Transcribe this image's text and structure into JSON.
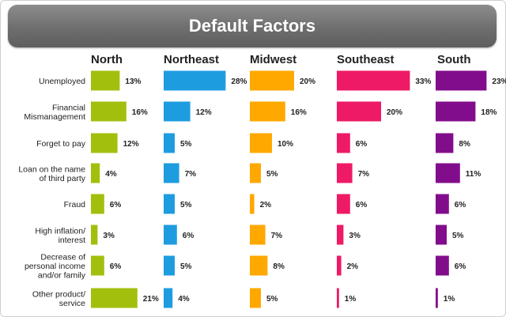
{
  "title": "Default Factors",
  "chart_data": {
    "type": "bar",
    "orientation": "horizontal",
    "title": "Default Factors",
    "value_suffix": "%",
    "categories": [
      [
        "Unemployed"
      ],
      [
        "Financial",
        "Mismanagement"
      ],
      [
        "Forget to pay"
      ],
      [
        "Loan on the name",
        "of third party"
      ],
      [
        "Fraud"
      ],
      [
        "High inflation/",
        "interest"
      ],
      [
        "Decrease of",
        "personal income",
        "and/or family"
      ],
      [
        "Other product/",
        "service"
      ]
    ],
    "series": [
      {
        "name": "North",
        "color": "#a3bf0d",
        "values": [
          13,
          16,
          12,
          4,
          6,
          3,
          6,
          21
        ]
      },
      {
        "name": "Northeast",
        "color": "#1e9ce0",
        "values": [
          28,
          12,
          5,
          7,
          5,
          6,
          5,
          4
        ]
      },
      {
        "name": "Midwest",
        "color": "#ffa800",
        "values": [
          20,
          16,
          10,
          5,
          2,
          7,
          8,
          5
        ]
      },
      {
        "name": "Southeast",
        "color": "#ee1a65",
        "values": [
          33,
          20,
          6,
          7,
          6,
          3,
          2,
          1
        ]
      },
      {
        "name": "South",
        "color": "#820d8c",
        "values": [
          23,
          18,
          8,
          11,
          6,
          5,
          6,
          1
        ]
      }
    ]
  }
}
